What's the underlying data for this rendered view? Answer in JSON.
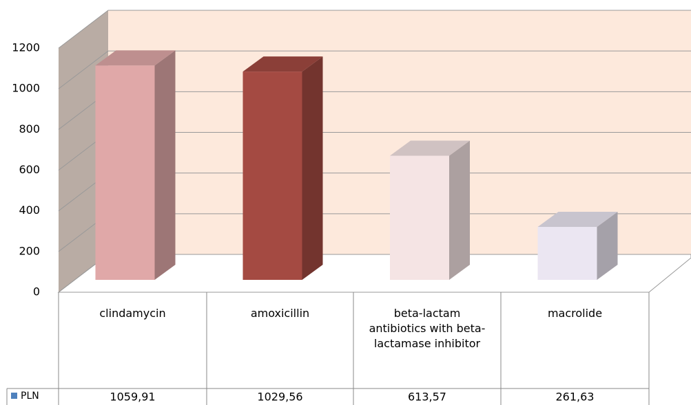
{
  "chart_data": {
    "type": "bar3d",
    "categories": [
      "clindamycin",
      "amoxicillin",
      "beta-lactam antibiotics with beta-lactamase inhibitor",
      "macrolide"
    ],
    "series": [
      {
        "name": "PLN",
        "color": "#4f81bd",
        "values": [
          1059.91,
          1029.56,
          613.57,
          261.63
        ],
        "value_labels": [
          "1059,91",
          "1029,56",
          "613,57",
          "261,63"
        ],
        "bar_colors": [
          "#e0a8a8",
          "#a44a42",
          "#f5e4e4",
          "#ebe6f2"
        ]
      }
    ],
    "ylim": [
      0,
      1200
    ],
    "yticks": [
      0,
      200,
      400,
      600,
      800,
      1000,
      1200
    ],
    "grid": true
  }
}
